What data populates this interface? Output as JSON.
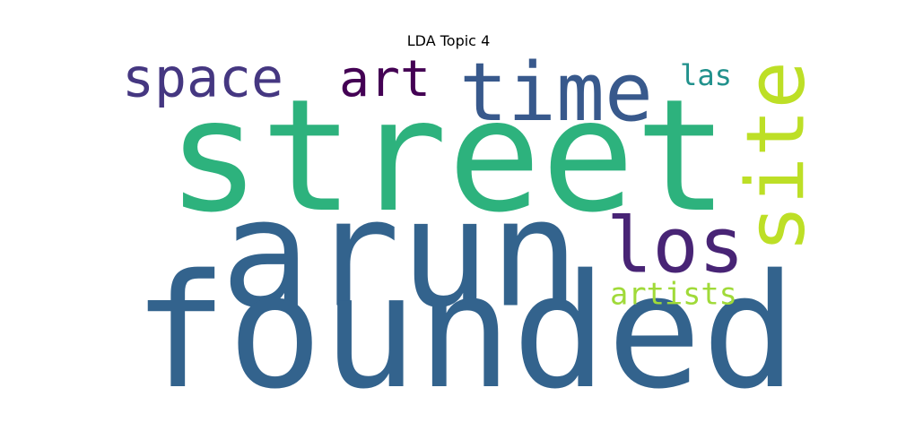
{
  "chart_data": {
    "type": "wordcloud",
    "title": "LDA Topic 4",
    "words": [
      {
        "text": "street",
        "color": "#2db27d"
      },
      {
        "text": "arun",
        "color": "#33638d"
      },
      {
        "text": "founded",
        "color": "#33638d"
      },
      {
        "text": "time",
        "color": "#38598c"
      },
      {
        "text": "space",
        "color": "#453781"
      },
      {
        "text": "art",
        "color": "#440154"
      },
      {
        "text": "site",
        "color": "#bddf26"
      },
      {
        "text": "los",
        "color": "#482475"
      },
      {
        "text": "las",
        "color": "#21918c"
      },
      {
        "text": "artists",
        "color": "#a0da39"
      }
    ]
  }
}
